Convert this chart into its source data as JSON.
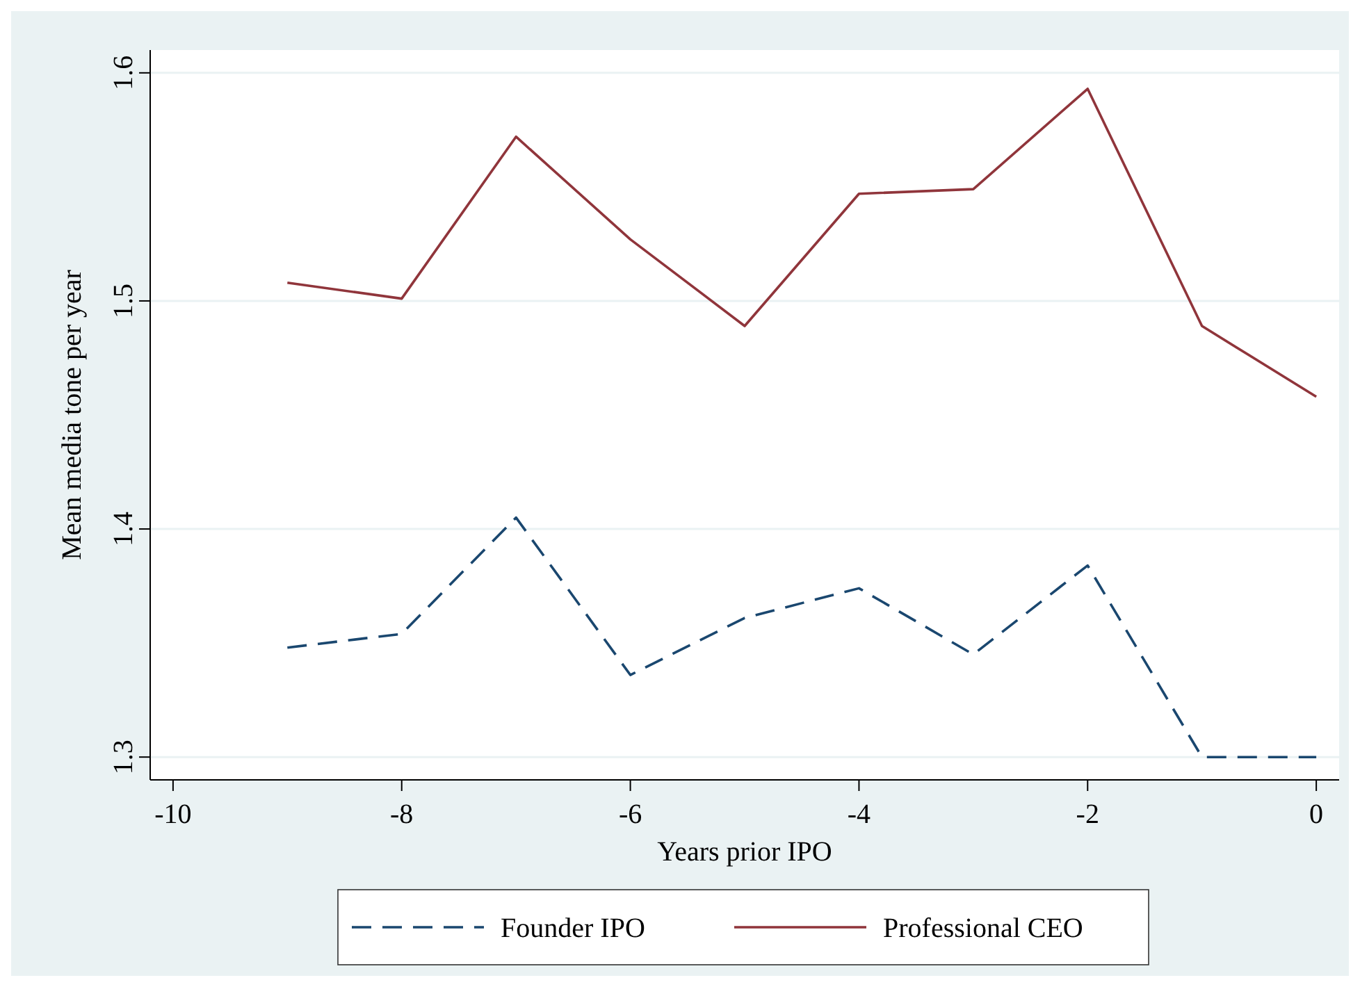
{
  "chart_data": {
    "type": "line",
    "xlabel": "Years prior IPO",
    "ylabel": "Mean media tone per year",
    "x": [
      -9,
      -8,
      -7,
      -6,
      -5,
      -4,
      -3,
      -2,
      -1,
      0
    ],
    "series": [
      {
        "name": "Founder IPO",
        "color": "#1a476f",
        "line_style": "dashed",
        "values": [
          1.348,
          1.354,
          1.405,
          1.336,
          1.361,
          1.374,
          1.345,
          1.384,
          1.3,
          1.3
        ]
      },
      {
        "name": "Professional CEO",
        "color": "#90353b",
        "line_style": "solid",
        "values": [
          1.508,
          1.501,
          1.572,
          1.527,
          1.489,
          1.547,
          1.549,
          1.593,
          1.489,
          1.458
        ]
      }
    ],
    "xlim": [
      -10.2,
      0.2
    ],
    "xticks": [
      -10,
      -8,
      -6,
      -4,
      -2,
      0
    ],
    "ylim": [
      1.29,
      1.61
    ],
    "yticks": [
      1.3,
      1.4,
      1.5,
      1.6
    ],
    "grid": "y",
    "legend": "bottom",
    "marker": "none"
  }
}
